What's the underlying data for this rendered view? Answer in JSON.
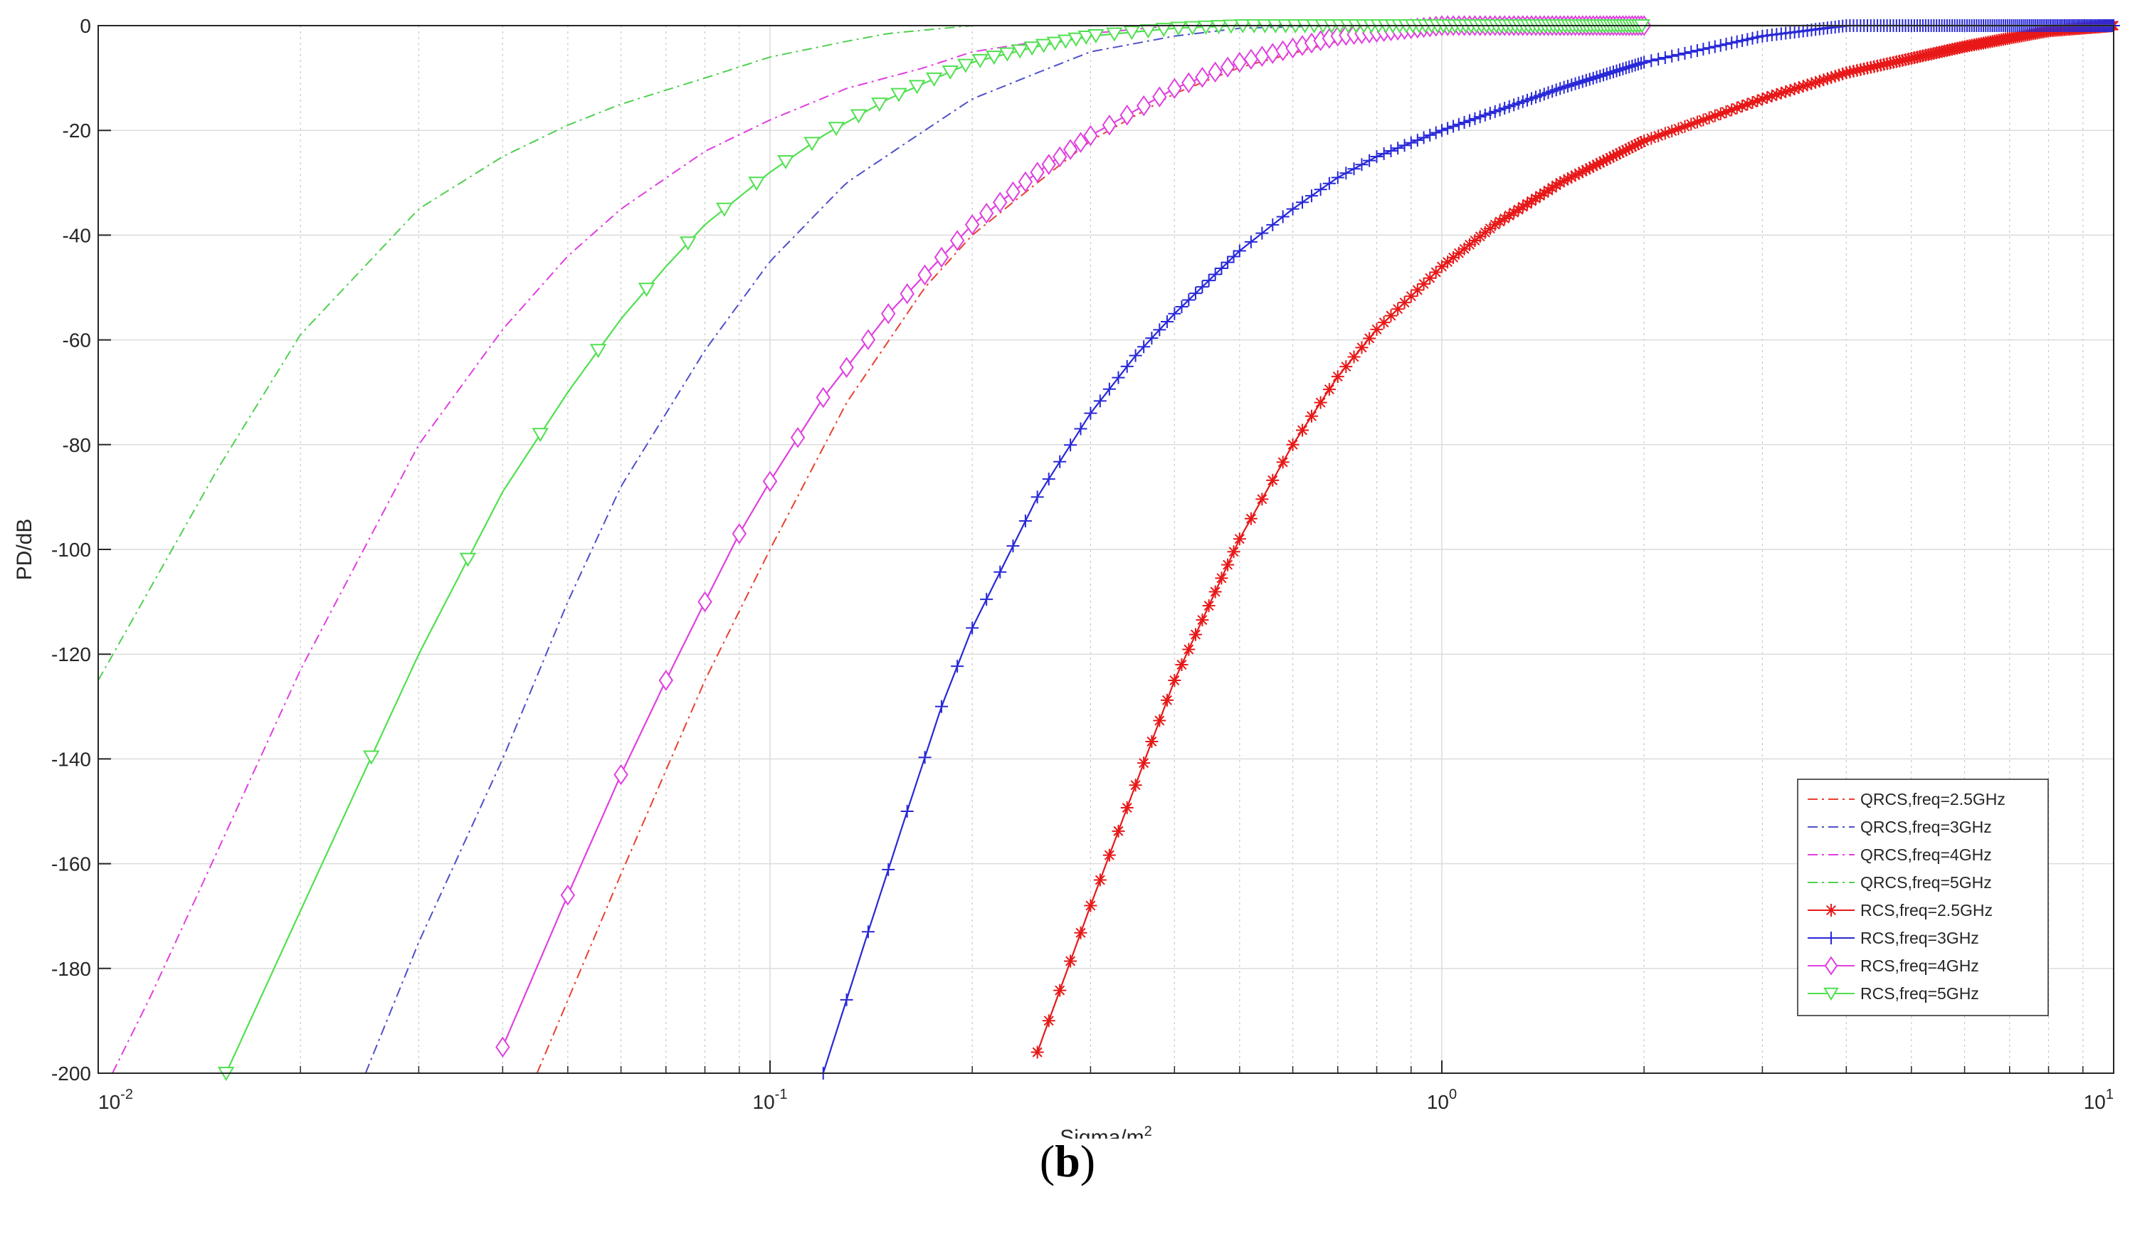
{
  "caption": {
    "open": "(",
    "letter": "b",
    "close": ")"
  },
  "chart_data": {
    "type": "line",
    "title": "",
    "xlabel": "Sigma/m",
    "xlabel_sup": "2",
    "ylabel": "PD/dB",
    "xscale": "log",
    "xlim": [
      0.01,
      10
    ],
    "ylim": [
      -200,
      0
    ],
    "grid": true,
    "legend_position": "bottom-right",
    "x_ticks": [
      {
        "base": "10",
        "exp": "-2",
        "value": 0.01
      },
      {
        "base": "10",
        "exp": "-1",
        "value": 0.1
      },
      {
        "base": "10",
        "exp": "0",
        "value": 1
      },
      {
        "base": "10",
        "exp": "1",
        "value": 10
      }
    ],
    "y_ticks": [
      0,
      -20,
      -40,
      -60,
      -80,
      -100,
      -120,
      -140,
      -160,
      -180,
      -200
    ],
    "series": [
      {
        "name": "QRCS,freq=2.5GHz",
        "color": "#e8412f",
        "style": "dashdot",
        "marker": "none",
        "x": [
          0.045,
          0.06,
          0.08,
          0.1,
          0.13,
          0.17,
          0.2,
          0.25,
          0.3,
          0.4,
          0.5,
          0.7,
          1.0,
          1.5,
          2
        ],
        "y": [
          -200,
          -162,
          -125,
          -100,
          -72,
          -50,
          -40,
          -30,
          -22,
          -13,
          -8,
          -3,
          -0.5,
          0,
          0
        ]
      },
      {
        "name": "QRCS,freq=3GHz",
        "color": "#5050c8",
        "style": "dashdot",
        "marker": "none",
        "x": [
          0.025,
          0.03,
          0.04,
          0.05,
          0.06,
          0.08,
          0.1,
          0.13,
          0.17,
          0.2,
          0.25,
          0.3,
          0.4,
          0.5,
          0.7
        ],
        "y": [
          -200,
          -175,
          -140,
          -110,
          -88,
          -62,
          -45,
          -30,
          -20,
          -14,
          -9,
          -5,
          -2,
          -0.5,
          0
        ]
      },
      {
        "name": "QRCS,freq=4GHz",
        "color": "#e040e0",
        "style": "dashdot",
        "marker": "none",
        "x": [
          0.0105,
          0.012,
          0.015,
          0.02,
          0.03,
          0.04,
          0.05,
          0.06,
          0.08,
          0.1,
          0.13,
          0.17,
          0.2,
          0.3,
          0.4
        ],
        "y": [
          -200,
          -185,
          -158,
          -123,
          -80,
          -58,
          -44,
          -35,
          -24,
          -18,
          -12,
          -8,
          -5,
          -1.5,
          0
        ]
      },
      {
        "name": "QRCS,freq=5GHz",
        "color": "#50d050",
        "style": "dashdot",
        "marker": "none",
        "x": [
          0.01,
          0.015,
          0.02,
          0.03,
          0.04,
          0.05,
          0.06,
          0.08,
          0.1,
          0.13,
          0.15,
          0.2
        ],
        "y": [
          -125,
          -85,
          -59,
          -35,
          -25,
          -19,
          -15,
          -10,
          -6,
          -3,
          -1.5,
          0
        ]
      },
      {
        "name": "RCS,freq=2.5GHz",
        "color": "#e81818",
        "style": "solid",
        "marker": "star",
        "x": [
          0.25,
          0.3,
          0.35,
          0.4,
          0.5,
          0.6,
          0.7,
          0.8,
          1.0,
          1.2,
          1.5,
          2.0,
          3.0,
          4.0,
          6.0,
          8.0,
          10.0
        ],
        "y": [
          -196,
          -168,
          -145,
          -125,
          -98,
          -80,
          -67,
          -58,
          -46,
          -38,
          -30,
          -22,
          -14,
          -9,
          -4,
          -1,
          0
        ]
      },
      {
        "name": "RCS,freq=3GHz",
        "color": "#2828d8",
        "style": "solid",
        "marker": "plus",
        "x": [
          0.12,
          0.14,
          0.16,
          0.18,
          0.2,
          0.25,
          0.3,
          0.35,
          0.4,
          0.5,
          0.6,
          0.7,
          0.8,
          1.0,
          1.5,
          2.0,
          3.0,
          4.0
        ],
        "y": [
          -200,
          -173,
          -150,
          -130,
          -115,
          -90,
          -74,
          -63,
          -55,
          -43,
          -35,
          -29,
          -25,
          -20,
          -12,
          -7,
          -2,
          0
        ]
      },
      {
        "name": "RCS,freq=4GHz",
        "color": "#e040e0",
        "style": "solid",
        "marker": "diamond",
        "x": [
          0.04,
          0.05,
          0.06,
          0.07,
          0.08,
          0.09,
          0.1,
          0.12,
          0.15,
          0.2,
          0.25,
          0.3,
          0.4,
          0.5,
          0.7,
          1.0,
          1.5
        ],
        "y": [
          -195,
          -166,
          -143,
          -125,
          -110,
          -97,
          -87,
          -71,
          -55,
          -38,
          -28,
          -21,
          -12,
          -7,
          -2,
          0,
          0
        ]
      },
      {
        "name": "RCS,freq=5GHz",
        "color": "#50e050",
        "style": "solid",
        "marker": "triangle-down",
        "x": [
          0.0155,
          0.02,
          0.025,
          0.03,
          0.04,
          0.05,
          0.06,
          0.07,
          0.08,
          0.1,
          0.12,
          0.15,
          0.2,
          0.25,
          0.3,
          0.4,
          0.5,
          1.0
        ],
        "y": [
          -200,
          -169,
          -142,
          -120,
          -89,
          -70,
          -56,
          -46,
          -38,
          -28,
          -21,
          -14,
          -7,
          -4,
          -2,
          -0.5,
          0,
          0
        ]
      }
    ]
  }
}
